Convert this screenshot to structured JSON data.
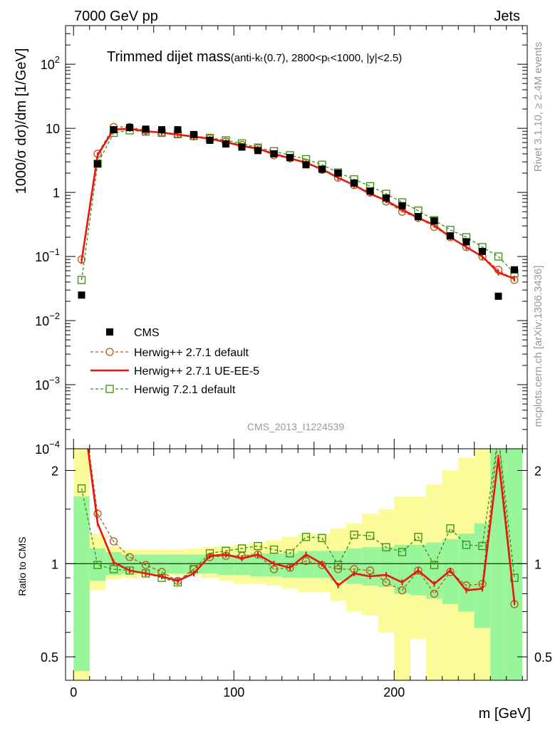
{
  "header": {
    "left": "7000 GeV pp",
    "right": "Jets"
  },
  "plot_title": {
    "main": "Trimmed dijet mass",
    "sub": "(anti-kₜ(0.7), 2800<pₜ<1000, |y|<2.5)"
  },
  "side_text": {
    "rivet": "Rivet 3.1.10, ≥ 2.4M events",
    "mcplots": "mcplots.cern.ch [arXiv:1306.3436]"
  },
  "analysis_id": "CMS_2013_I1224539",
  "chart_data": [
    {
      "type": "scatter",
      "role": "main",
      "ylabel": "1000/σ dσ)/dm [1/GeV]",
      "xlabel": "m [GeV]",
      "ylog": true,
      "xlim": [
        -5,
        283
      ],
      "ylim": [
        0.0001,
        400
      ],
      "yticks": [
        {
          "v": 100,
          "m": "10",
          "e": "2"
        },
        {
          "v": 10,
          "m": "10",
          "e": ""
        },
        {
          "v": 1,
          "m": "1",
          "e": ""
        },
        {
          "v": 0.1,
          "m": "10",
          "e": "−1"
        },
        {
          "v": 0.01,
          "m": "10",
          "e": "−2"
        },
        {
          "v": 0.001,
          "m": "10",
          "e": "−3"
        },
        {
          "v": 0.0001,
          "m": "10",
          "e": "−4"
        }
      ],
      "x": [
        5,
        15,
        25,
        35,
        45,
        55,
        65,
        75,
        85,
        95,
        105,
        115,
        125,
        135,
        145,
        155,
        165,
        175,
        185,
        195,
        205,
        215,
        225,
        235,
        245,
        255,
        265,
        275
      ],
      "series": [
        {
          "name": "CMS",
          "color": "#000000",
          "marker": "filled-square",
          "values": [
            0.025,
            2.8,
            9.5,
            10.3,
            9.7,
            9.5,
            9.5,
            8.0,
            6.5,
            5.7,
            5.1,
            4.5,
            4.0,
            3.5,
            2.7,
            2.3,
            2.0,
            1.4,
            1.05,
            0.82,
            0.62,
            0.42,
            0.36,
            0.21,
            0.17,
            0.12,
            0.024,
            0.062
          ]
        },
        {
          "name": "Herwig++ 2.7.1 default",
          "color": "#b05c10",
          "marker": "open-circle",
          "line": "dashed",
          "values": [
            0.09,
            4.0,
            10.5,
            10.5,
            9.2,
            8.6,
            8.1,
            7.5,
            7.0,
            6.2,
            5.5,
            4.9,
            3.8,
            3.4,
            2.9,
            2.25,
            1.7,
            1.3,
            1.0,
            0.72,
            0.5,
            0.4,
            0.29,
            0.2,
            0.14,
            0.1,
            0.062,
            0.043
          ]
        },
        {
          "name": "Herwig++ 2.7.1 UE-EE-5",
          "color": "#e8160e",
          "marker": "none",
          "line": "solid",
          "values": [
            0.085,
            3.8,
            9.6,
            9.8,
            9.0,
            8.6,
            8.0,
            7.4,
            6.9,
            6.1,
            5.3,
            4.8,
            4.0,
            3.4,
            2.9,
            2.3,
            1.7,
            1.3,
            0.95,
            0.75,
            0.54,
            0.4,
            0.31,
            0.2,
            0.14,
            0.1,
            0.056,
            0.045
          ]
        },
        {
          "name": "Herwig 7.2.1 default",
          "color": "#3b8c12",
          "marker": "open-square",
          "line": "dashed",
          "values": [
            0.043,
            2.8,
            8.5,
            9.3,
            8.9,
            8.5,
            8.1,
            7.6,
            7.1,
            6.5,
            5.8,
            5.0,
            4.4,
            3.8,
            3.3,
            2.7,
            2.05,
            1.6,
            1.25,
            0.95,
            0.7,
            0.52,
            0.37,
            0.26,
            0.2,
            0.14,
            0.1,
            0.055
          ]
        }
      ],
      "legend_position": "lower-left"
    },
    {
      "type": "line",
      "role": "ratio",
      "ylabel": "Ratio to CMS",
      "xlabel": "m [GeV]",
      "ylog": true,
      "xlim": [
        -5,
        283
      ],
      "ylim": [
        0.42,
        2.35
      ],
      "xticks": [
        0,
        100,
        200
      ],
      "yticks": [
        0.5,
        1,
        2
      ],
      "reference_line": 1,
      "bands": {
        "edges": [
          0,
          10,
          20,
          30,
          40,
          50,
          60,
          70,
          80,
          90,
          100,
          110,
          120,
          130,
          140,
          150,
          160,
          170,
          180,
          190,
          200,
          210,
          220,
          230,
          240,
          250,
          260,
          270,
          280
        ],
        "stat_color": "#99f599",
        "syst_color": "#fbfb9a",
        "stat_lo": [
          0.45,
          0.88,
          0.92,
          0.93,
          0.93,
          0.93,
          0.93,
          0.93,
          0.93,
          0.92,
          0.92,
          0.91,
          0.91,
          0.9,
          0.9,
          0.9,
          0.88,
          0.86,
          0.85,
          0.84,
          0.8,
          0.79,
          0.77,
          0.74,
          0.7,
          0.62,
          0.4,
          0.4
        ],
        "stat_hi": [
          1.65,
          1.12,
          1.09,
          1.07,
          1.07,
          1.07,
          1.07,
          1.07,
          1.07,
          1.07,
          1.07,
          1.08,
          1.08,
          1.08,
          1.1,
          1.1,
          1.1,
          1.12,
          1.13,
          1.13,
          1.15,
          1.15,
          1.17,
          1.2,
          1.25,
          1.35,
          2.5,
          2.5
        ],
        "syst_lo": [
          0.4,
          0.82,
          0.89,
          0.9,
          0.91,
          0.91,
          0.92,
          0.92,
          0.9,
          0.88,
          0.86,
          0.86,
          0.85,
          0.83,
          0.81,
          0.81,
          0.76,
          0.7,
          0.68,
          0.6,
          0.4,
          0.57,
          0.4,
          0.4,
          0.4,
          0.4,
          0.4,
          0.4
        ],
        "syst_hi": [
          2.5,
          1.25,
          1.13,
          1.11,
          1.11,
          1.11,
          1.11,
          1.12,
          1.13,
          1.14,
          1.15,
          1.17,
          1.19,
          1.22,
          1.25,
          1.25,
          1.3,
          1.35,
          1.45,
          1.5,
          1.65,
          1.65,
          1.8,
          2.0,
          2.2,
          2.35,
          2.5,
          2.5
        ]
      },
      "x": [
        5,
        15,
        25,
        35,
        45,
        55,
        65,
        75,
        85,
        95,
        105,
        115,
        125,
        135,
        145,
        155,
        165,
        175,
        185,
        195,
        205,
        215,
        225,
        235,
        245,
        255,
        265,
        275
      ],
      "series": [
        {
          "name": "Herwig++ 2.7.1 default",
          "color": "#b05c10",
          "marker": "open-circle",
          "line": "dashed",
          "values": [
            3.5,
            1.45,
            1.18,
            1.05,
            0.99,
            0.94,
            0.88,
            0.96,
            1.05,
            1.06,
            1.06,
            1.07,
            0.96,
            0.97,
            1.02,
            0.99,
            0.96,
            0.96,
            0.95,
            0.87,
            0.82,
            0.95,
            0.8,
            0.94,
            0.85,
            0.86,
            2.6,
            0.74
          ]
        },
        {
          "name": "Herwig++ 2.7.1 UE-EE-5",
          "color": "#e8160e",
          "marker": "none",
          "line": "solid",
          "values": [
            3.4,
            1.35,
            1.01,
            0.95,
            0.93,
            0.91,
            0.88,
            0.93,
            1.06,
            1.07,
            1.04,
            1.07,
            1.0,
            0.97,
            1.07,
            1.0,
            0.85,
            0.93,
            0.91,
            0.92,
            0.87,
            0.95,
            0.86,
            0.95,
            0.82,
            0.83,
            2.2,
            0.75
          ]
        },
        {
          "name": "Herwig 7.2.1 default",
          "color": "#3b8c12",
          "marker": "open-square",
          "line": "dashed",
          "values": [
            1.75,
            0.99,
            0.96,
            0.95,
            0.93,
            0.9,
            0.87,
            0.96,
            1.08,
            1.1,
            1.12,
            1.14,
            1.11,
            1.08,
            1.22,
            1.21,
            0.99,
            1.24,
            1.23,
            1.13,
            1.09,
            1.22,
            0.99,
            1.3,
            1.15,
            1.14,
            2.6,
            0.9
          ]
        }
      ]
    }
  ]
}
